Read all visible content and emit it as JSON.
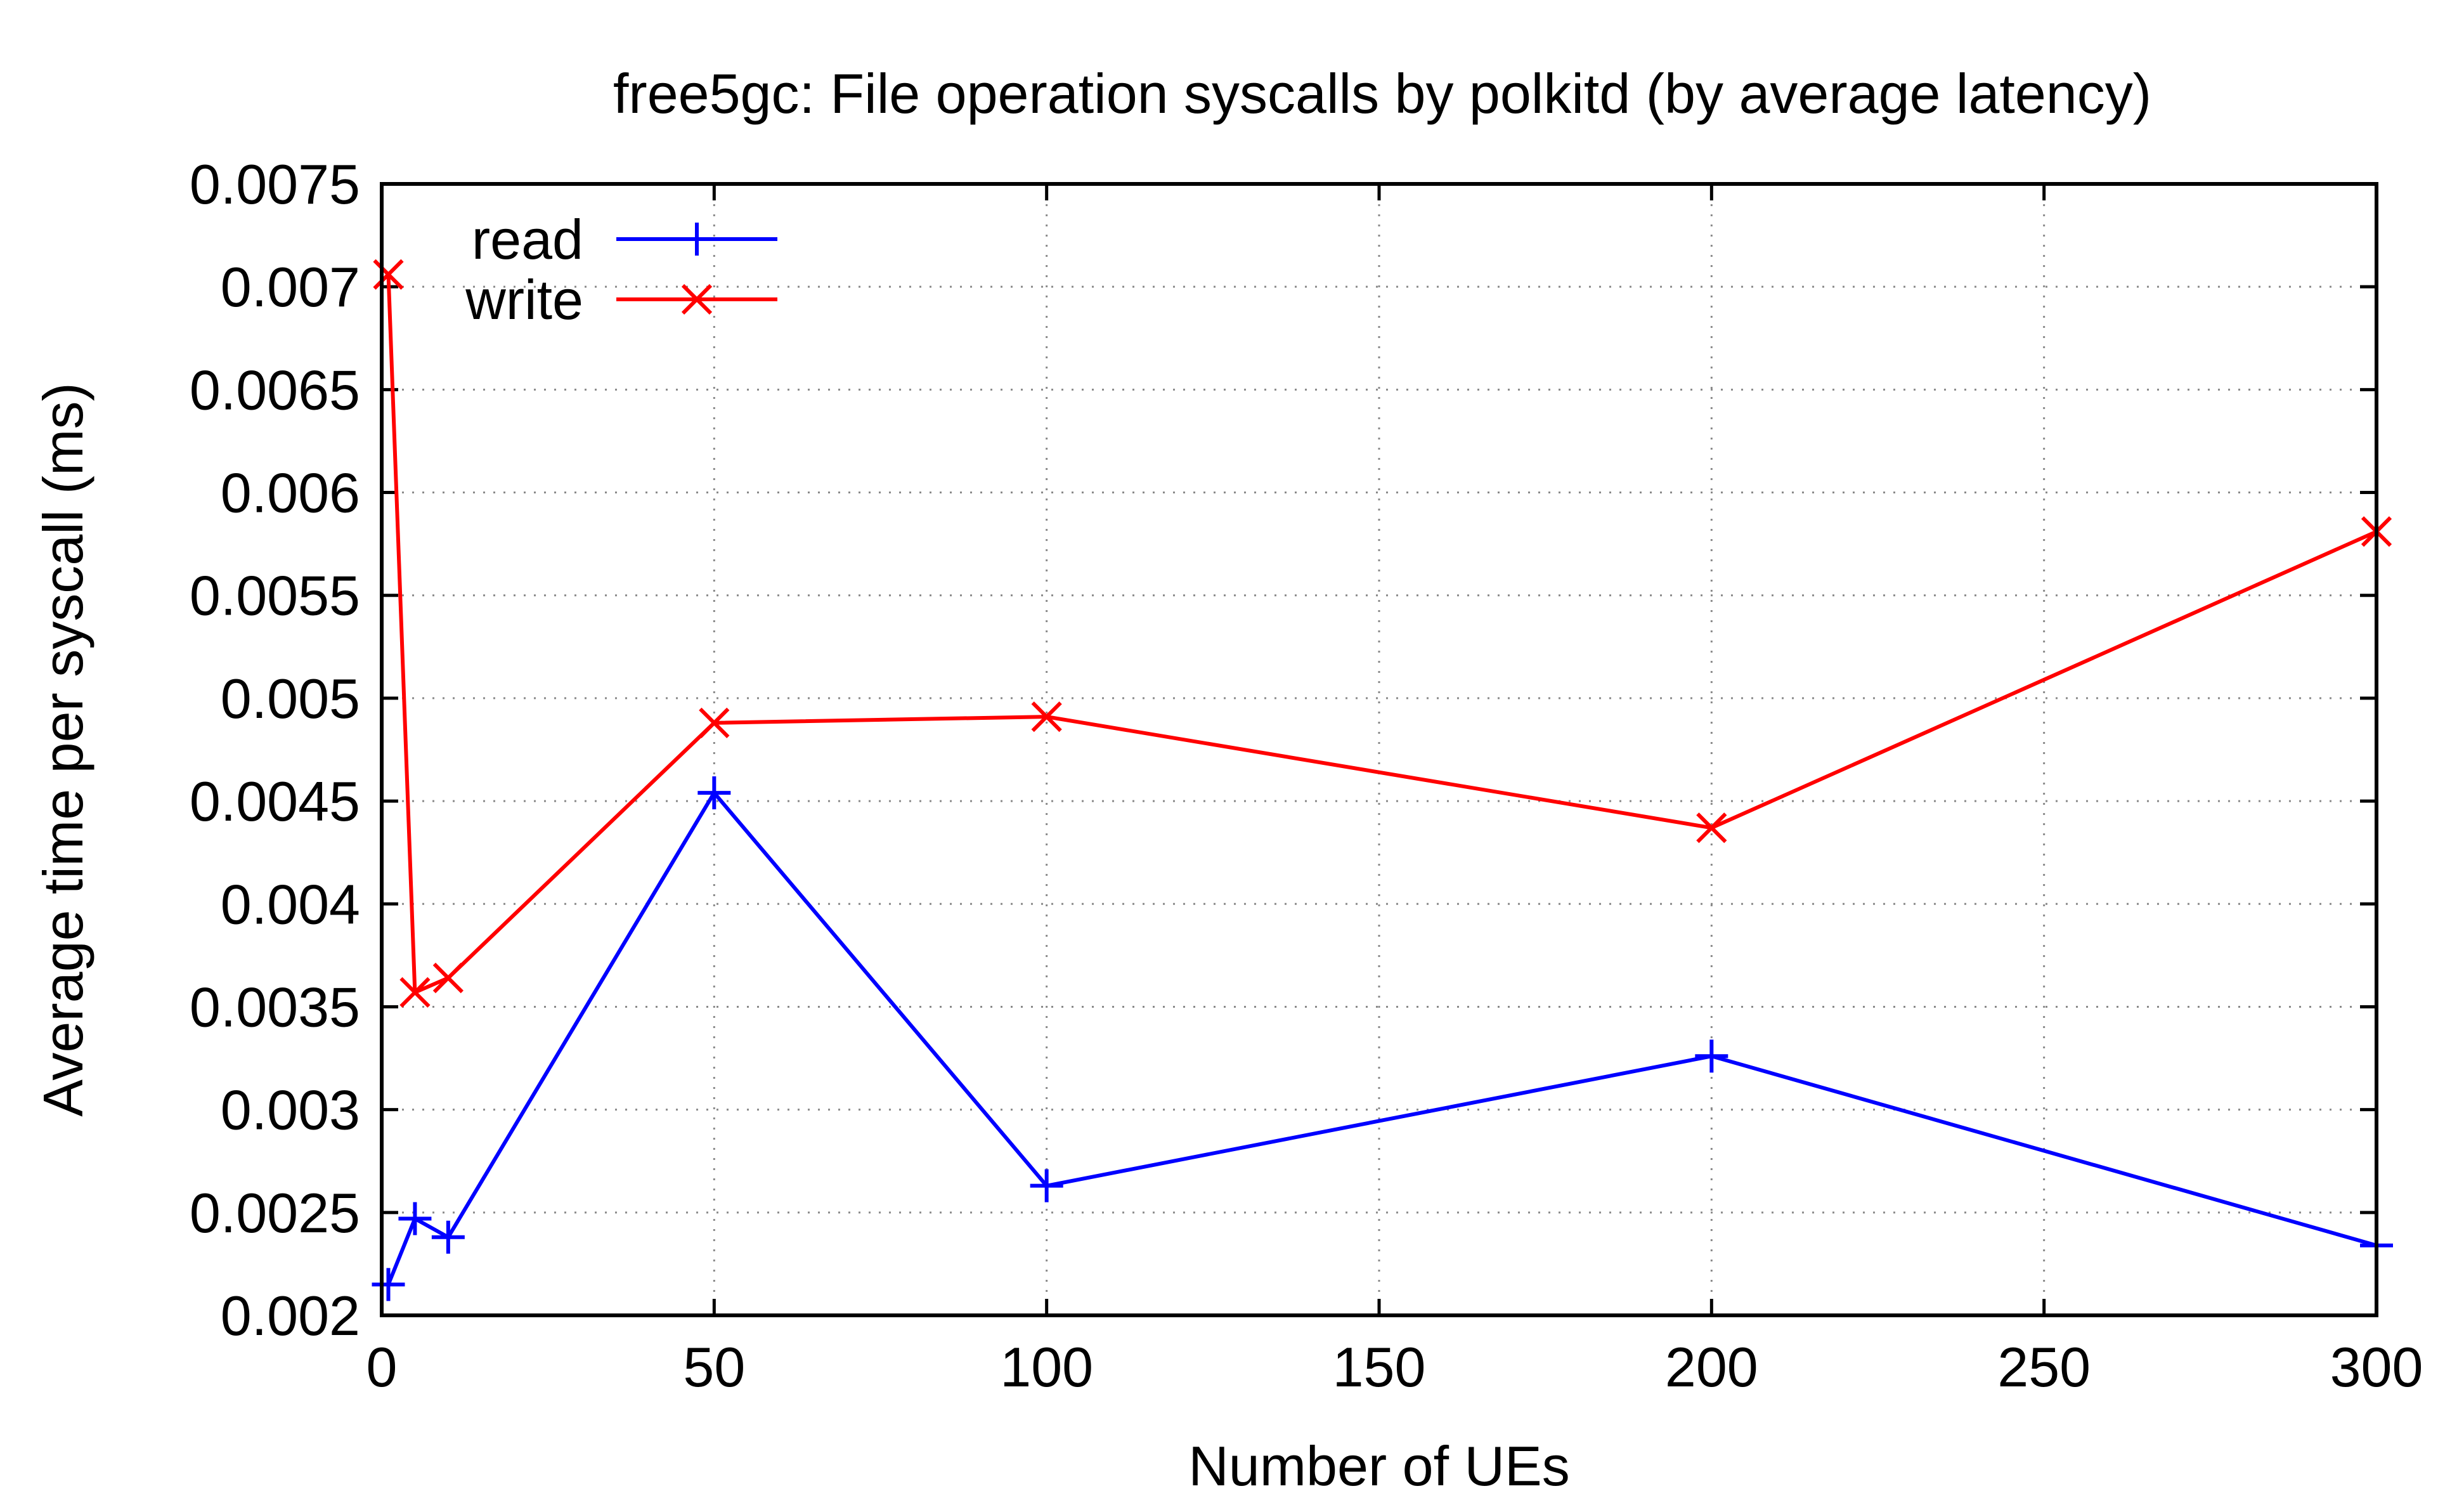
{
  "chart_data": {
    "type": "line",
    "title": "free5gc: File operation syscalls by polkitd (by average latency)",
    "xlabel": "Number of UEs",
    "ylabel": "Average time per syscall (ms)",
    "xlim": [
      0,
      300
    ],
    "ylim": [
      0.002,
      0.0075
    ],
    "xticks": [
      "0",
      "50",
      "100",
      "150",
      "200",
      "250",
      "300"
    ],
    "yticks": [
      "0.002",
      "0.0025",
      "0.003",
      "0.0035",
      "0.004",
      "0.0045",
      "0.005",
      "0.0055",
      "0.006",
      "0.0065",
      "0.007",
      "0.0075"
    ],
    "grid": true,
    "legend_position": "top-left",
    "x": [
      1,
      5,
      10,
      50,
      100,
      200,
      300
    ],
    "series": [
      {
        "name": "read",
        "color": "#0000ff",
        "marker": "plus",
        "values": [
          0.00215,
          0.00247,
          0.00238,
          0.00454,
          0.00263,
          0.00326,
          0.00234
        ]
      },
      {
        "name": "write",
        "color": "#ff0000",
        "marker": "cross",
        "values": [
          0.00706,
          0.00357,
          0.00364,
          0.00488,
          0.00491,
          0.00437,
          0.00581
        ]
      }
    ]
  }
}
